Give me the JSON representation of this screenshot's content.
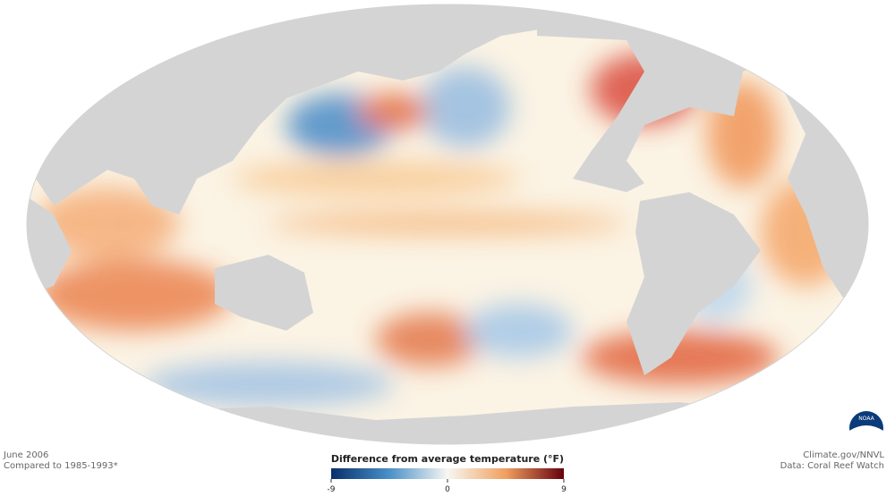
{
  "map": {
    "date": "June 2006",
    "baseline": "Compared to 1985-1993*",
    "credit": "Climate.gov/NNVL",
    "source": "Data: Coral Reef Watch",
    "logo": "NOAA"
  },
  "legend": {
    "title": "Difference from average temperature (°F)",
    "range": [
      -9,
      9
    ],
    "ticks": [
      -9,
      0,
      9
    ],
    "colors": [
      "#08306b",
      "#4a90c8",
      "#f7f7f2",
      "#f0a060",
      "#67000d"
    ]
  }
}
